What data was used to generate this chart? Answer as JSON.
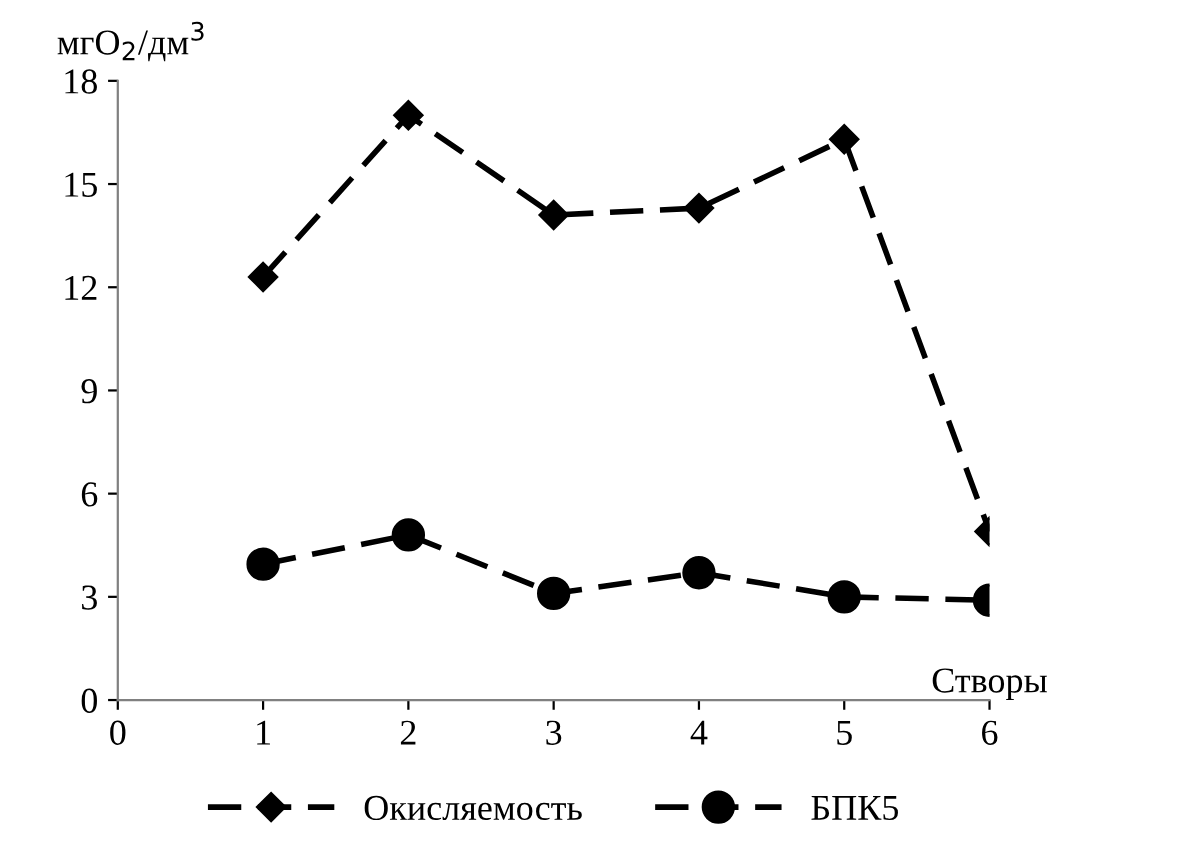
{
  "chart_data": {
    "type": "line",
    "ylabel": "мгO$_{2}$/дм$^{3}$",
    "xlabel": "Створы",
    "x": [
      1,
      2,
      3,
      4,
      5,
      6
    ],
    "series": [
      {
        "name": "Окисляемость",
        "color": "#000000",
        "marker": "diamond",
        "line_style": "dashed",
        "values": [
          12.3,
          17.0,
          14.1,
          14.3,
          16.3,
          4.9
        ]
      },
      {
        "name": "БПК5",
        "color": "#000000",
        "marker": "circle",
        "line_style": "dashed",
        "values": [
          3.95,
          4.8,
          3.1,
          3.7,
          3.0,
          2.9
        ]
      }
    ],
    "xlim": [
      0,
      6
    ],
    "xticks": [
      0,
      1,
      2,
      3,
      4,
      5,
      6
    ],
    "ylim": [
      0,
      18
    ],
    "yticks": [
      0,
      3,
      6,
      9,
      12,
      15,
      18
    ],
    "grid": false,
    "legend": "bottom"
  }
}
